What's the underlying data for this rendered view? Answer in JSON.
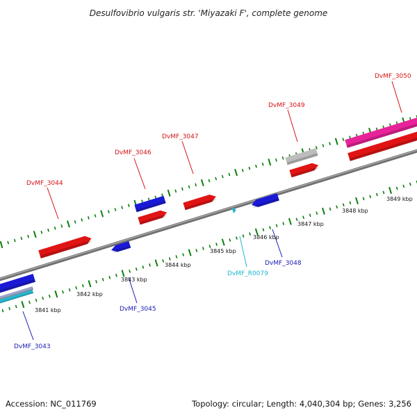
{
  "title": "Desulfovibrio vulgaris str. 'Miyazaki F', complete genome",
  "footer": {
    "accession": "Accession: NC_011769",
    "summary": "Topology: circular; Length: 4,040,304 bp; Genes: 3,256"
  },
  "colors": {
    "backbone": "#8a8a8a",
    "ticks": "#0a7d0a",
    "gene_red": "#e01414",
    "gene_blue": "#1a1ad6",
    "gene_pink": "#e8239a",
    "gene_gray": "#bdbdbd",
    "gene_cyan": "#22b8cf",
    "label_red": "#d41313",
    "label_blue": "#1a1ab8",
    "label_cyan": "#20b4d0"
  },
  "scale_labels": [
    "3841 kbp",
    "3842 kbp",
    "3843 kbp",
    "3844 kbp",
    "3845 kbp",
    "3846 kbp",
    "3847 kbp",
    "3848 kbp",
    "3849 kbp"
  ],
  "gene_labels": [
    {
      "id": "DvMF_3043",
      "color": "blue"
    },
    {
      "id": "DvMF_3044",
      "color": "red"
    },
    {
      "id": "DvMF_3045",
      "color": "blue"
    },
    {
      "id": "DvMF_3046",
      "color": "red"
    },
    {
      "id": "DvMF_3047",
      "color": "red"
    },
    {
      "id": "DvMF_R0079",
      "color": "cyan"
    },
    {
      "id": "DvMF_3048",
      "color": "blue"
    },
    {
      "id": "DvMF_3049",
      "color": "red"
    },
    {
      "id": "DvMF_3050",
      "color": "red"
    }
  ]
}
